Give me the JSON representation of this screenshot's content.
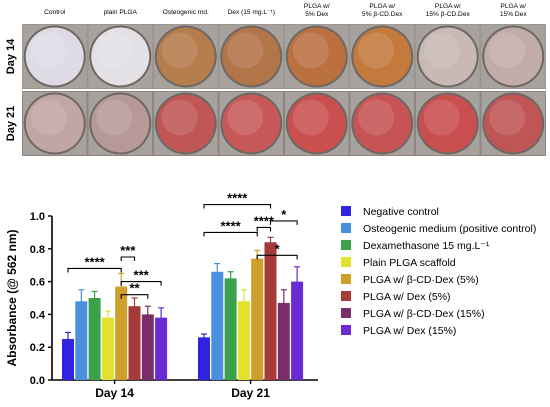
{
  "plate": {
    "columns": [
      "Control",
      "plain PLGA",
      "Osteogenic md.",
      "Dex (15 mg.L⁻¹)",
      "PLGA w/\n5% Dex",
      "PLGA w/\n5% β-CD.Dex",
      "PLGA w/\n15% β-CD.Dex",
      "PLGA w/\n15% Dex"
    ],
    "rows": [
      "Day 14",
      "Day 21"
    ],
    "well_colors": [
      [
        "#dedbe5",
        "#e3e0e6",
        "#b57c4c",
        "#b27449",
        "#bb7040",
        "#c47a3d",
        "#c8b9b4",
        "#c2aca7"
      ],
      [
        "#c2a6a4",
        "#b79a98",
        "#c05656",
        "#c75858",
        "#c9504f",
        "#c65454",
        "#c94e4f",
        "#c05555"
      ]
    ]
  },
  "chart_data": {
    "type": "bar",
    "ylabel": "Absorbance (@ 562 nm)",
    "categories": [
      "Day 14",
      "Day 21"
    ],
    "ylim": [
      0.0,
      1.0
    ],
    "yticks": [
      "0.0",
      "0.2",
      "0.4",
      "0.6",
      "0.8",
      "1.0"
    ],
    "series": [
      {
        "name": "Negative control",
        "color": "#2f24e0",
        "values": [
          0.25,
          0.26
        ],
        "errors": [
          0.04,
          0.02
        ]
      },
      {
        "name": "Osteogenic medium (positive control)",
        "color": "#4a8ede",
        "values": [
          0.48,
          0.66
        ],
        "errors": [
          0.07,
          0.05
        ]
      },
      {
        "name": "Dexamethasone 15 mg.L⁻¹",
        "color": "#3aa04a",
        "values": [
          0.5,
          0.62
        ],
        "errors": [
          0.04,
          0.04
        ]
      },
      {
        "name": "Plain PLGA scaffold",
        "color": "#e4e030",
        "values": [
          0.38,
          0.48
        ],
        "errors": [
          0.04,
          0.07
        ]
      },
      {
        "name": "PLGA w/ β-CD·Dex (5%)",
        "color": "#cf9f2c",
        "values": [
          0.57,
          0.74
        ],
        "errors": [
          0.08,
          0.05
        ]
      },
      {
        "name": "PLGA w/ Dex (5%)",
        "color": "#a53a3a",
        "values": [
          0.45,
          0.84
        ],
        "errors": [
          0.05,
          0.03
        ]
      },
      {
        "name": "PLGA w/ β-CD·Dex (15%)",
        "color": "#7a2f6a",
        "values": [
          0.4,
          0.47
        ],
        "errors": [
          0.05,
          0.08
        ]
      },
      {
        "name": "PLGA w/ Dex (15%)",
        "color": "#6a2bd4",
        "values": [
          0.38,
          0.6
        ],
        "errors": [
          0.06,
          0.09
        ]
      }
    ],
    "significance": [
      {
        "group": 0,
        "from": 0,
        "to": 4,
        "y": 0.68,
        "label": "****"
      },
      {
        "group": 0,
        "from": 4,
        "to": 5,
        "y": 0.75,
        "label": "***"
      },
      {
        "group": 0,
        "from": 4,
        "to": 7,
        "y": 0.6,
        "label": "***"
      },
      {
        "group": 0,
        "from": 4,
        "to": 6,
        "y": 0.52,
        "label": "**"
      },
      {
        "group": 1,
        "from": 0,
        "to": 4,
        "y": 0.9,
        "label": "****"
      },
      {
        "group": 1,
        "from": 0,
        "to": 5,
        "y": 1.07,
        "label": "****"
      },
      {
        "group": 1,
        "from": 4,
        "to": 5,
        "y": 0.93,
        "label": "****"
      },
      {
        "group": 1,
        "from": 4,
        "to": 7,
        "y": 0.76,
        "label": "*"
      },
      {
        "group": 1,
        "from": 5,
        "to": 7,
        "y": 0.97,
        "label": "*"
      }
    ]
  }
}
